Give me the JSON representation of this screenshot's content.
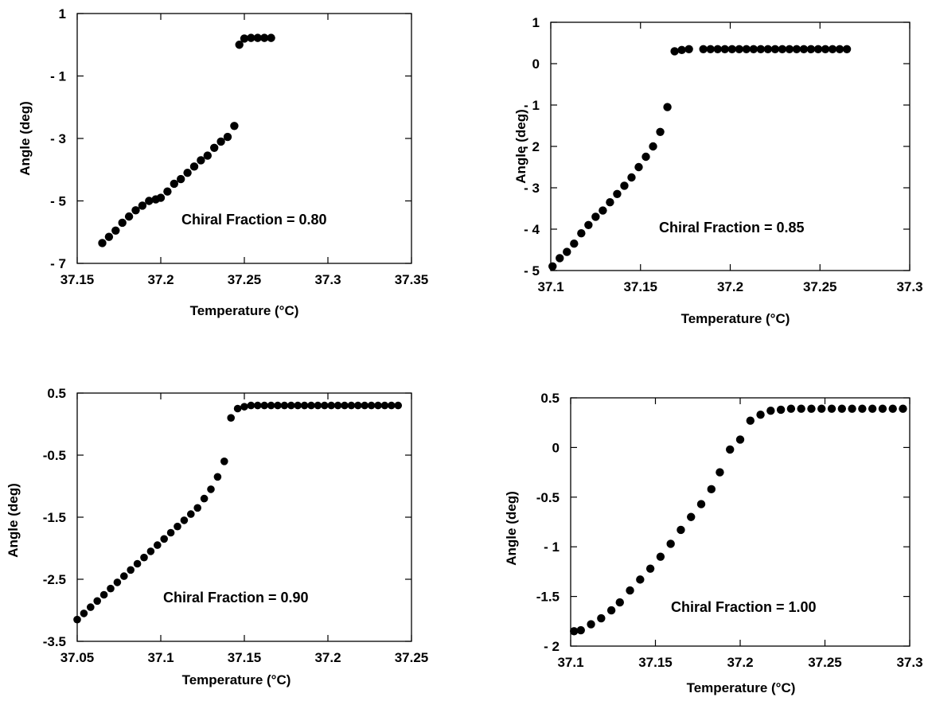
{
  "figure": {
    "marker_color": "#000000",
    "background": "#ffffff"
  },
  "chart_data": [
    {
      "type": "scatter",
      "xlabel": "Temperature   (°C)",
      "ylabel": "Angle  (deg)",
      "annotation": "Chiral  Fraction  =  0.80",
      "xlim": [
        37.15,
        37.35
      ],
      "ylim": [
        -7,
        1
      ],
      "xticks": [
        37.15,
        37.2,
        37.25,
        37.3,
        37.35
      ],
      "xtick_labels": [
        "37.15",
        "37.2",
        "37.25",
        "37.3",
        "37.35"
      ],
      "yticks": [
        -7,
        -5,
        -3,
        -1,
        1
      ],
      "ytick_labels": [
        "- 7",
        "- 5",
        "- 3",
        "- 1",
        "1"
      ],
      "grid": false,
      "x": [
        37.165,
        37.169,
        37.173,
        37.177,
        37.181,
        37.185,
        37.189,
        37.193,
        37.197,
        37.2,
        37.204,
        37.208,
        37.212,
        37.216,
        37.22,
        37.224,
        37.228,
        37.232,
        37.236,
        37.24,
        37.244,
        37.247,
        37.25,
        37.254,
        37.258,
        37.262,
        37.266
      ],
      "y": [
        -6.35,
        -6.15,
        -5.95,
        -5.7,
        -5.5,
        -5.3,
        -5.15,
        -5.0,
        -4.95,
        -4.9,
        -4.7,
        -4.45,
        -4.3,
        -4.1,
        -3.9,
        -3.7,
        -3.55,
        -3.3,
        -3.1,
        -2.95,
        -2.6,
        0.0,
        0.2,
        0.22,
        0.22,
        0.22,
        0.22
      ]
    },
    {
      "type": "scatter",
      "xlabel": "Temperature   (°C)",
      "ylabel": "Angle   (deg)",
      "annotation": "Chiral   Fraction   =   0.85",
      "xlim": [
        37.1,
        37.3
      ],
      "ylim": [
        -5,
        1
      ],
      "xticks": [
        37.1,
        37.15,
        37.2,
        37.25,
        37.3
      ],
      "xtick_labels": [
        "37.1",
        "37.15",
        "37.2",
        "37.25",
        "37.3"
      ],
      "yticks": [
        -5,
        -4,
        -3,
        -2,
        -1,
        0,
        1
      ],
      "ytick_labels": [
        "- 5",
        "- 4",
        "- 3",
        "- 2",
        "- 1",
        "0",
        "1"
      ],
      "grid": false,
      "x": [
        37.101,
        37.105,
        37.109,
        37.113,
        37.117,
        37.121,
        37.125,
        37.129,
        37.133,
        37.137,
        37.141,
        37.145,
        37.149,
        37.153,
        37.157,
        37.161,
        37.165,
        37.169,
        37.173,
        37.177,
        37.185,
        37.189,
        37.193,
        37.197,
        37.201,
        37.205,
        37.209,
        37.213,
        37.217,
        37.221,
        37.225,
        37.229,
        37.233,
        37.237,
        37.241,
        37.245,
        37.249,
        37.253,
        37.257,
        37.261,
        37.265
      ],
      "y": [
        -4.9,
        -4.7,
        -4.55,
        -4.35,
        -4.1,
        -3.9,
        -3.7,
        -3.55,
        -3.35,
        -3.15,
        -2.95,
        -2.75,
        -2.5,
        -2.25,
        -2.0,
        -1.65,
        -1.05,
        0.3,
        0.33,
        0.35,
        0.35,
        0.35,
        0.35,
        0.35,
        0.35,
        0.35,
        0.35,
        0.35,
        0.35,
        0.35,
        0.35,
        0.35,
        0.35,
        0.35,
        0.35,
        0.35,
        0.35,
        0.35,
        0.35,
        0.35,
        0.35
      ]
    },
    {
      "type": "scatter",
      "xlabel": "Temperature   (°C)",
      "ylabel": "Angle   (deg)",
      "annotation": "Chiral   Fraction   =   0.90",
      "xlim": [
        37.05,
        37.25
      ],
      "ylim": [
        -3.5,
        0.5
      ],
      "xticks": [
        37.05,
        37.1,
        37.15,
        37.2,
        37.25
      ],
      "xtick_labels": [
        "37.05",
        "37.1",
        "37.15",
        "37.2",
        "37.25"
      ],
      "yticks": [
        -3.5,
        -2.5,
        -1.5,
        -0.5,
        0.5
      ],
      "ytick_labels": [
        "-3.5",
        "-2.5",
        "-1.5",
        "-0.5",
        "0.5"
      ],
      "grid": false,
      "x": [
        37.05,
        37.054,
        37.058,
        37.062,
        37.066,
        37.07,
        37.074,
        37.078,
        37.082,
        37.086,
        37.09,
        37.094,
        37.098,
        37.102,
        37.106,
        37.11,
        37.114,
        37.118,
        37.122,
        37.126,
        37.13,
        37.134,
        37.138,
        37.142,
        37.146,
        37.15,
        37.154,
        37.158,
        37.162,
        37.166,
        37.17,
        37.174,
        37.178,
        37.182,
        37.186,
        37.19,
        37.194,
        37.198,
        37.202,
        37.206,
        37.21,
        37.214,
        37.218,
        37.222,
        37.226,
        37.23,
        37.234,
        37.238,
        37.242
      ],
      "y": [
        -3.15,
        -3.05,
        -2.95,
        -2.85,
        -2.75,
        -2.65,
        -2.55,
        -2.45,
        -2.35,
        -2.25,
        -2.15,
        -2.05,
        -1.95,
        -1.85,
        -1.75,
        -1.65,
        -1.55,
        -1.45,
        -1.35,
        -1.2,
        -1.05,
        -0.85,
        -0.6,
        0.1,
        0.25,
        0.28,
        0.3,
        0.3,
        0.3,
        0.3,
        0.3,
        0.3,
        0.3,
        0.3,
        0.3,
        0.3,
        0.3,
        0.3,
        0.3,
        0.3,
        0.3,
        0.3,
        0.3,
        0.3,
        0.3,
        0.3,
        0.3,
        0.3,
        0.3
      ]
    },
    {
      "type": "scatter",
      "xlabel": "Temperature   (°C)",
      "ylabel": "Angle   (deg)",
      "annotation": "Chiral   Fraction   =   1.00",
      "xlim": [
        37.1,
        37.3
      ],
      "ylim": [
        -2,
        0.5
      ],
      "xticks": [
        37.1,
        37.15,
        37.2,
        37.25,
        37.3
      ],
      "xtick_labels": [
        "37.1",
        "37.15",
        "37.2",
        "37.25",
        "37.3"
      ],
      "yticks": [
        -2,
        -1.5,
        -1,
        -0.5,
        0,
        0.5
      ],
      "ytick_labels": [
        "- 2",
        "-1.5",
        "- 1",
        "-0.5",
        "0",
        "0.5"
      ],
      "grid": false,
      "x": [
        37.102,
        37.106,
        37.112,
        37.118,
        37.124,
        37.129,
        37.135,
        37.141,
        37.147,
        37.153,
        37.159,
        37.165,
        37.171,
        37.177,
        37.183,
        37.188,
        37.194,
        37.2,
        37.206,
        37.212,
        37.218,
        37.224,
        37.23,
        37.236,
        37.242,
        37.248,
        37.254,
        37.26,
        37.266,
        37.272,
        37.278,
        37.284,
        37.29,
        37.296
      ],
      "y": [
        -1.85,
        -1.84,
        -1.78,
        -1.72,
        -1.64,
        -1.56,
        -1.44,
        -1.33,
        -1.22,
        -1.1,
        -0.97,
        -0.83,
        -0.7,
        -0.57,
        -0.42,
        -0.25,
        -0.02,
        0.08,
        0.27,
        0.33,
        0.37,
        0.38,
        0.39,
        0.39,
        0.39,
        0.39,
        0.39,
        0.39,
        0.39,
        0.39,
        0.39,
        0.39,
        0.39,
        0.39
      ]
    }
  ]
}
